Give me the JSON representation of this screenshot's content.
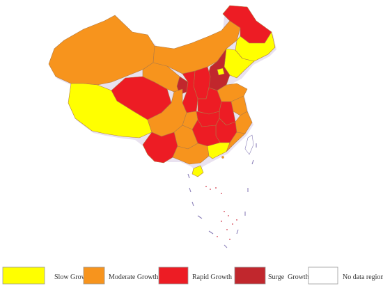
{
  "legend": {
    "items": [
      {
        "label": "Slow Growth",
        "color": "#ffff00"
      },
      {
        "label": "Moderate Growth",
        "color": "#f7941d"
      },
      {
        "label": "Rapid Growth",
        "color": "#ed1c24"
      },
      {
        "label": "Surge  Growth",
        "color": "#c1272d"
      },
      {
        "label": "No data region",
        "color": "#ffffff"
      }
    ]
  },
  "colors": {
    "slow": "#ffff00",
    "moderate": "#f7941d",
    "rapid": "#ed1c24",
    "surge": "#c1272d",
    "no_data": "#ffffff"
  }
}
